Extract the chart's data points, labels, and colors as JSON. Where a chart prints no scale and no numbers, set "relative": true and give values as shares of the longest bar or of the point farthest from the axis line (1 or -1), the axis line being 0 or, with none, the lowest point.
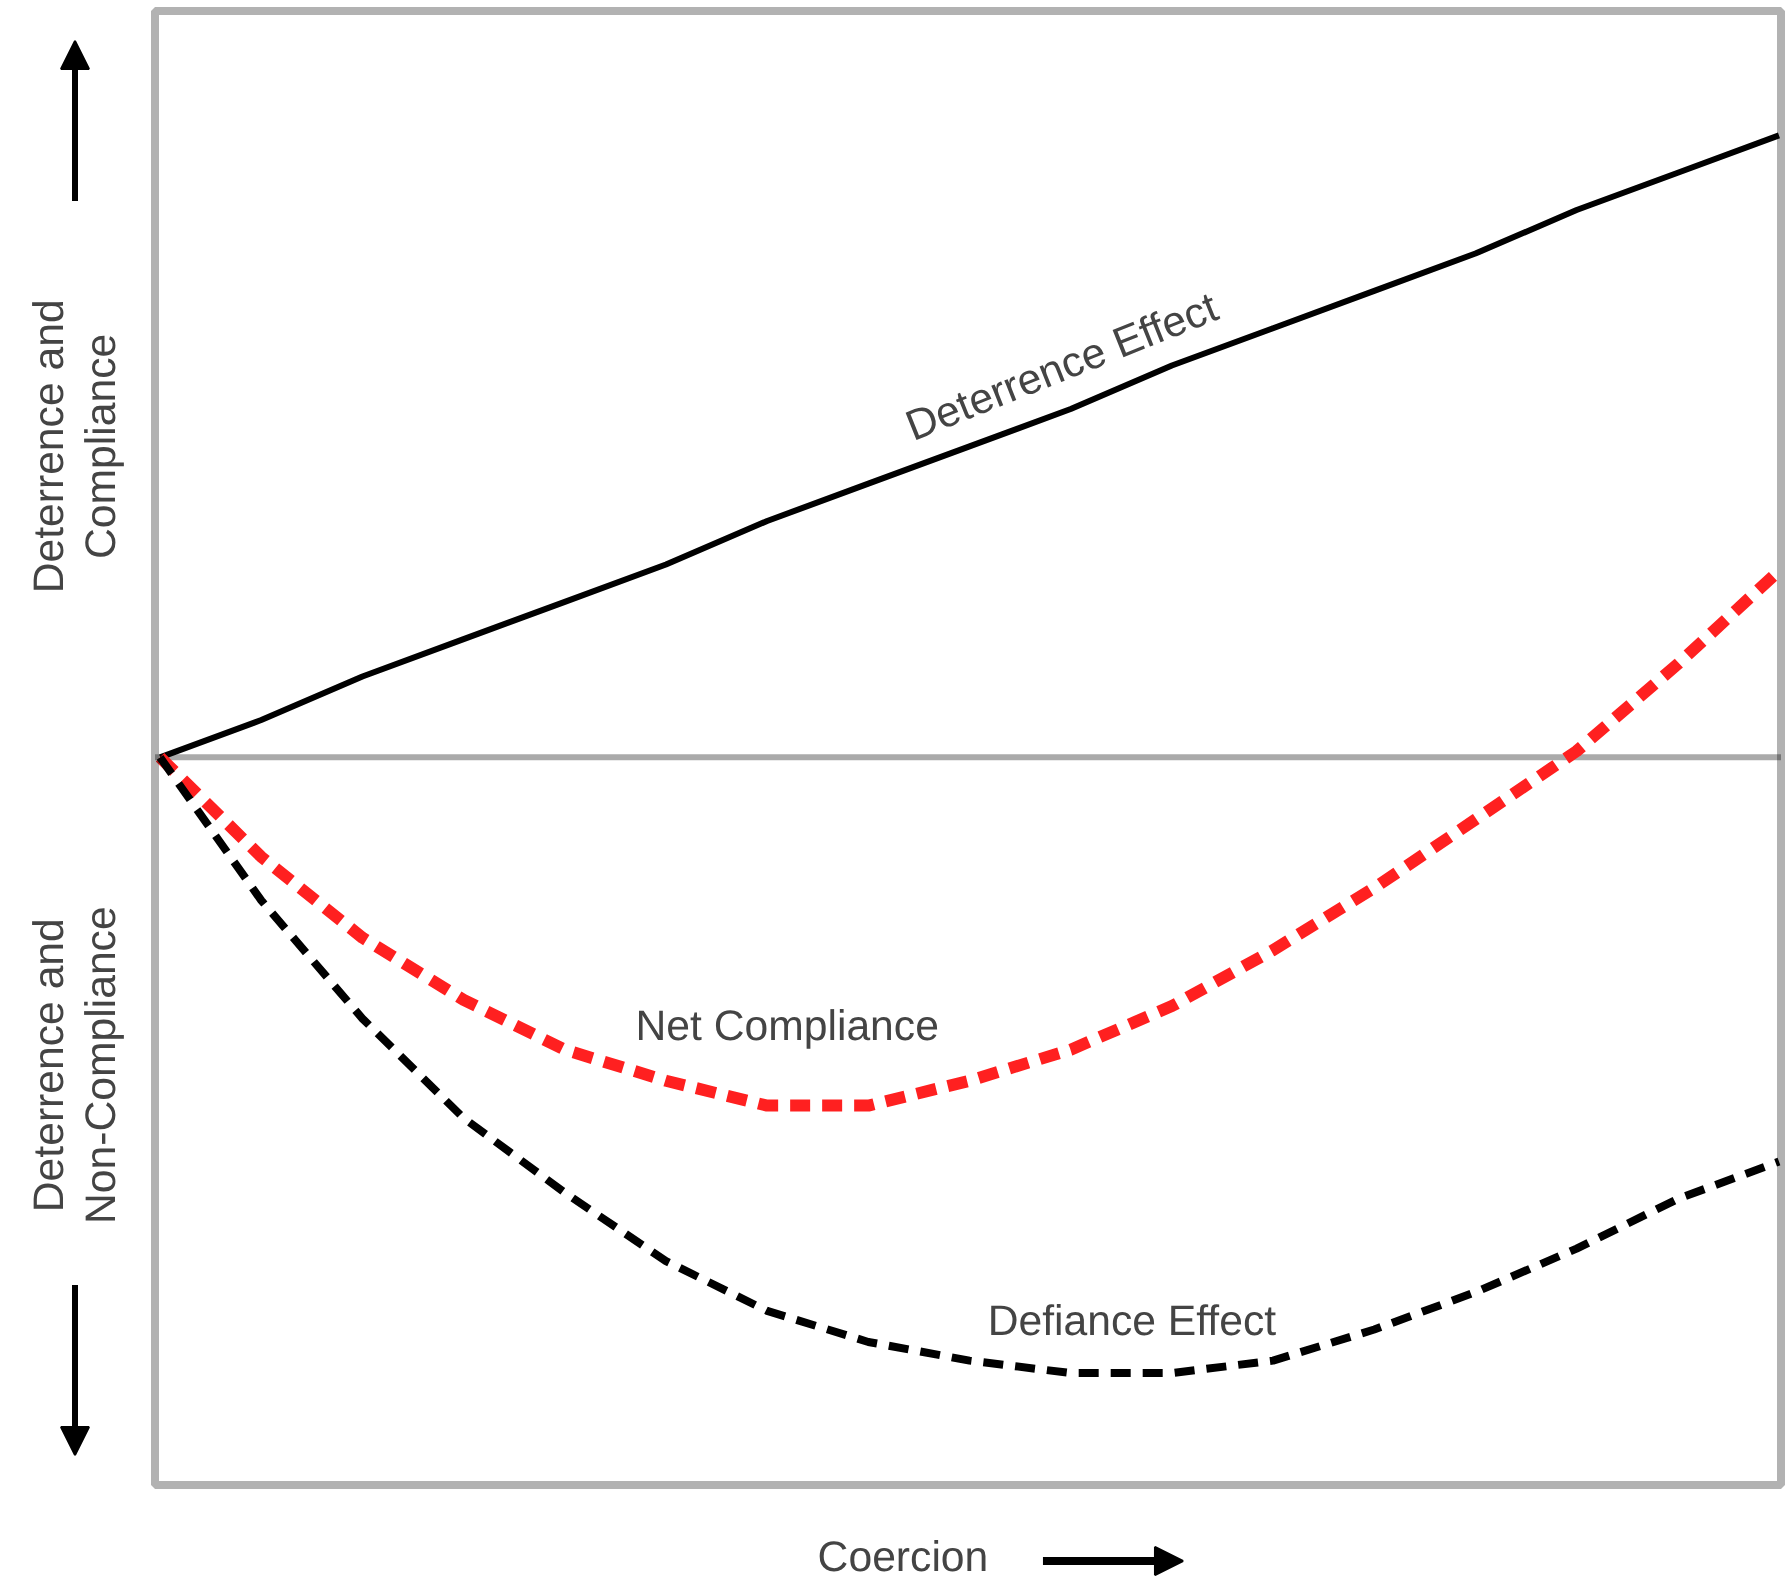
{
  "chart_data": {
    "type": "line",
    "relative": true,
    "xlabel": "Coercion",
    "ylabel": "Deterrence and Compliance",
    "annotations": [
      "Deterrence and Non-Compliance"
    ],
    "categories": [
      null,
      null,
      null,
      null,
      null,
      null,
      null,
      null,
      null,
      null,
      null,
      null,
      null,
      null,
      null,
      null,
      null
    ],
    "series": [
      {
        "name": "Deterrence Effect",
        "color": "#000000",
        "line_style": "solid",
        "values": [
          0,
          0.06,
          0.13,
          0.19,
          0.25,
          0.31,
          0.38,
          0.44,
          0.5,
          0.56,
          0.63,
          0.69,
          0.75,
          0.81,
          0.88,
          0.94,
          1
        ]
      },
      {
        "name": "Net Compliance",
        "color": "#ff2020",
        "line_style": "dashed",
        "values": [
          0,
          -0.16,
          -0.29,
          -0.39,
          -0.47,
          -0.52,
          -0.56,
          -0.56,
          -0.52,
          -0.47,
          -0.4,
          -0.31,
          -0.21,
          -0.1,
          0.01,
          0.15,
          0.3
        ]
      },
      {
        "name": "Defiance Effect",
        "color": "#000000",
        "line_style": "dashed",
        "values": [
          0,
          -0.23,
          -0.42,
          -0.58,
          -0.7,
          -0.81,
          -0.89,
          -0.94,
          -0.97,
          -0.99,
          -0.99,
          -0.97,
          -0.92,
          -0.86,
          -0.79,
          -0.71,
          -0.65
        ]
      }
    ],
    "ref_lines": [
      {
        "axis": "y",
        "value": 0,
        "color": "#aaaaaa"
      }
    ],
    "grid": false,
    "legend": false
  }
}
